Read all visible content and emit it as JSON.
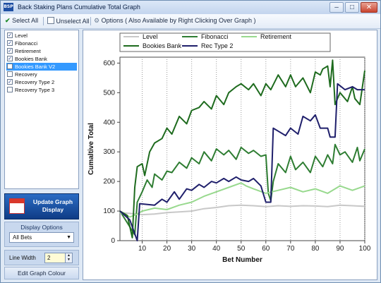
{
  "window": {
    "title": "Back Staking Plans Cumulative Total Graph",
    "app_icon_text": "BSP",
    "minimize_glyph": "–",
    "maximize_glyph": "□",
    "close_glyph": "✕"
  },
  "toolbar": {
    "select_all": "Select All",
    "unselect_all": "Unselect All",
    "options": "Options ( Also Available by Right Clicking Over Graph )"
  },
  "plans": [
    {
      "label": "Level",
      "checked": true
    },
    {
      "label": "Fibonacci",
      "checked": true
    },
    {
      "label": "Retirement",
      "checked": true
    },
    {
      "label": "Bookies Bank",
      "checked": true
    },
    {
      "label": "Bookies Bank V2",
      "checked": false,
      "selected": true
    },
    {
      "label": "Recovery",
      "checked": false
    },
    {
      "label": "Recovery Type 2",
      "checked": true
    },
    {
      "label": "Recovery Type 3",
      "checked": false
    }
  ],
  "update_button": {
    "line1": "Update Graph",
    "line2": "Display"
  },
  "display_options": {
    "title": "Display Options",
    "selected": "All Bets"
  },
  "line_width": {
    "label": "Line Width",
    "value": "2"
  },
  "edit_colour_button": "Edit Graph Colour",
  "chart_data": {
    "type": "line",
    "xlabel": "Bet Number",
    "ylabel": "Cumaltive Total",
    "xlim": [
      1,
      100
    ],
    "ylim": [
      0,
      620
    ],
    "xticks": [
      10,
      20,
      30,
      40,
      50,
      60,
      70,
      80,
      90,
      100
    ],
    "yticks": [
      0,
      100,
      200,
      300,
      400,
      500,
      600
    ],
    "grid": "vertical dotted",
    "legend_position": "top",
    "series": [
      {
        "name": "Level",
        "color": "#c8c8c8",
        "x": [
          1,
          5,
          10,
          15,
          20,
          25,
          30,
          35,
          40,
          45,
          50,
          55,
          60,
          65,
          70,
          75,
          80,
          85,
          90,
          95,
          100
        ],
        "y": [
          95,
          92,
          88,
          90,
          95,
          97,
          100,
          108,
          112,
          118,
          120,
          118,
          115,
          118,
          116,
          118,
          117,
          115,
          120,
          118,
          116
        ]
      },
      {
        "name": "Fibonacci",
        "color": "#2e7d32",
        "x": [
          1,
          4,
          7,
          8,
          10,
          12,
          14,
          15,
          18,
          20,
          22,
          25,
          28,
          30,
          33,
          35,
          38,
          40,
          43,
          45,
          48,
          50,
          53,
          55,
          58,
          60,
          61,
          62,
          63,
          65,
          68,
          70,
          72,
          75,
          78,
          80,
          83,
          85,
          87,
          88,
          90,
          92,
          95,
          97,
          98,
          100
        ],
        "y": [
          100,
          60,
          20,
          130,
          165,
          205,
          180,
          225,
          205,
          235,
          230,
          265,
          245,
          280,
          260,
          300,
          270,
          310,
          290,
          305,
          275,
          315,
          295,
          305,
          285,
          290,
          160,
          135,
          200,
          260,
          230,
          285,
          240,
          265,
          230,
          285,
          250,
          290,
          260,
          325,
          290,
          300,
          265,
          315,
          270,
          310
        ]
      },
      {
        "name": "Retirement",
        "color": "#98d98e",
        "x": [
          1,
          5,
          8,
          10,
          15,
          20,
          25,
          30,
          35,
          40,
          45,
          50,
          52,
          55,
          60,
          65,
          70,
          75,
          80,
          85,
          90,
          95,
          100
        ],
        "y": [
          95,
          80,
          90,
          100,
          110,
          105,
          120,
          130,
          150,
          165,
          180,
          195,
          185,
          175,
          160,
          170,
          180,
          165,
          175,
          160,
          185,
          170,
          185
        ]
      },
      {
        "name": "Bookies Bank",
        "color": "#1e6b1e",
        "x": [
          1,
          4,
          6,
          7,
          8,
          10,
          11,
          13,
          15,
          18,
          20,
          22,
          25,
          28,
          30,
          33,
          35,
          38,
          40,
          43,
          45,
          48,
          50,
          53,
          55,
          58,
          60,
          62,
          65,
          68,
          70,
          72,
          75,
          78,
          80,
          82,
          83,
          85,
          86,
          87,
          88,
          90,
          93,
          95,
          96,
          98,
          100
        ],
        "y": [
          100,
          85,
          10,
          180,
          250,
          260,
          220,
          300,
          330,
          345,
          380,
          360,
          420,
          395,
          440,
          450,
          470,
          445,
          490,
          460,
          500,
          520,
          530,
          510,
          530,
          490,
          530,
          510,
          560,
          520,
          560,
          520,
          550,
          500,
          570,
          560,
          580,
          590,
          520,
          610,
          460,
          500,
          470,
          520,
          480,
          460,
          575
        ]
      },
      {
        "name": "Rec Type 2",
        "color": "#1f1f6b",
        "x": [
          1,
          5,
          8,
          9,
          15,
          18,
          20,
          23,
          25,
          28,
          30,
          33,
          35,
          38,
          40,
          43,
          45,
          48,
          50,
          53,
          55,
          58,
          60,
          62,
          63,
          65,
          68,
          70,
          73,
          75,
          78,
          80,
          82,
          85,
          86,
          88,
          89,
          92,
          95,
          97,
          100
        ],
        "y": [
          100,
          70,
          0,
          125,
          120,
          140,
          130,
          165,
          140,
          175,
          170,
          190,
          180,
          200,
          195,
          210,
          200,
          215,
          205,
          200,
          210,
          185,
          130,
          130,
          380,
          370,
          355,
          380,
          360,
          420,
          405,
          425,
          380,
          380,
          350,
          350,
          530,
          510,
          520,
          510,
          510
        ]
      }
    ]
  }
}
